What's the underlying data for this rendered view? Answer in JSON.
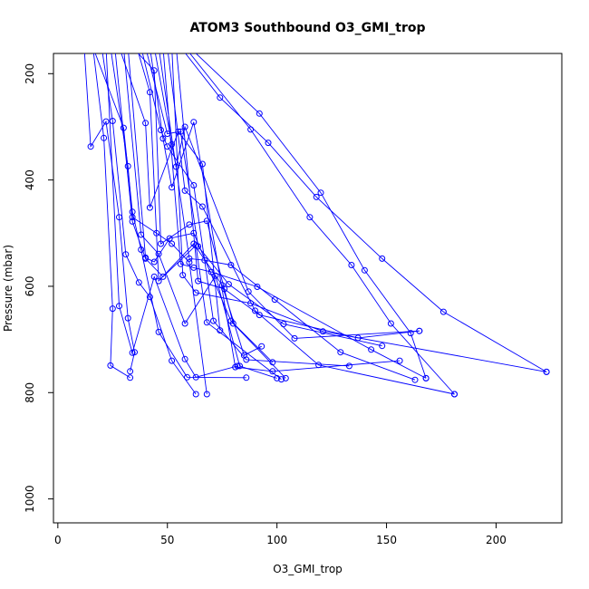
{
  "chart_data": {
    "type": "line",
    "title": "ATOM3 Southbound O3_GMI_trop",
    "xlabel": "O3_GMI_trop",
    "ylabel": "Pressure (mbar)",
    "xlim": [
      -2,
      230
    ],
    "ylim": [
      1045,
      162
    ],
    "y_reversed": true,
    "xticks": [
      0,
      50,
      100,
      150,
      200
    ],
    "yticks": [
      200,
      400,
      600,
      800,
      1000
    ],
    "grid": false,
    "color": "#0000ff",
    "marker": "open-circle",
    "series": [
      {
        "x": [
          12,
          15,
          22,
          28,
          32,
          35,
          33
        ],
        "y": [
          150,
          337,
          290,
          470,
          660,
          724,
          760
        ]
      },
      {
        "x": [
          16,
          21,
          25,
          24,
          33
        ],
        "y": [
          150,
          321,
          642,
          749,
          772
        ]
      },
      {
        "x": [
          16,
          30,
          34,
          38,
          46,
          59,
          86
        ],
        "y": [
          150,
          302,
          460,
          531,
          686,
          771,
          772
        ]
      },
      {
        "x": [
          20,
          25,
          31,
          37,
          42,
          52,
          63
        ],
        "y": [
          150,
          289,
          540,
          593,
          620,
          740,
          803
        ]
      },
      {
        "x": [
          22,
          28,
          34,
          44,
          58,
          63,
          82
        ],
        "y": [
          150,
          637,
          725,
          582,
          737,
          771,
          750
        ]
      },
      {
        "x": [
          24,
          32,
          34,
          45,
          52,
          60,
          68
        ],
        "y": [
          150,
          374,
          470,
          500,
          520,
          555,
          803
        ]
      },
      {
        "x": [
          26,
          34,
          40,
          48,
          63,
          68,
          102
        ],
        "y": [
          150,
          478,
          548,
          582,
          523,
          668,
          775
        ]
      },
      {
        "x": [
          28,
          40,
          42,
          55,
          66,
          74
        ],
        "y": [
          150,
          293,
          452,
          309,
          370,
          683
        ]
      },
      {
        "x": [
          30,
          38,
          46,
          58,
          72,
          83,
          100
        ],
        "y": [
          150,
          503,
          539,
          670,
          580,
          750,
          773
        ]
      },
      {
        "x": [
          32,
          40,
          44,
          51,
          62,
          79,
          98
        ],
        "y": [
          150,
          546,
          554,
          510,
          500,
          665,
          743
        ]
      },
      {
        "x": [
          34,
          44,
          47,
          60,
          68,
          80,
          104
        ],
        "y": [
          150,
          194,
          520,
          484,
          477,
          670,
          773
        ]
      },
      {
        "x": [
          36,
          42,
          46,
          62,
          75,
          85,
          93
        ],
        "y": [
          150,
          235,
          590,
          520,
          598,
          730,
          713
        ]
      },
      {
        "x": [
          38,
          47,
          50,
          62,
          71,
          86,
          133
        ],
        "y": [
          150,
          306,
          337,
          410,
          665,
          738,
          750
        ]
      },
      {
        "x": [
          40,
          50,
          56,
          64,
          78,
          103,
          148
        ],
        "y": [
          150,
          313,
          309,
          525,
          596,
          671,
          712
        ]
      },
      {
        "x": [
          42,
          48,
          52,
          62,
          81,
          98,
          156
        ],
        "y": [
          150,
          322,
          414,
          291,
          752,
          760,
          740
        ]
      },
      {
        "x": [
          44,
          52,
          54,
          58,
          87,
          108,
          165
        ],
        "y": [
          150,
          333,
          375,
          300,
          610,
          698,
          684
        ]
      },
      {
        "x": [
          46,
          60,
          67,
          79,
          99,
          129,
          163
        ],
        "y": [
          150,
          548,
          551,
          560,
          625,
          724,
          776
        ]
      },
      {
        "x": [
          48,
          56,
          62,
          70,
          91,
          143,
          168
        ],
        "y": [
          150,
          558,
          565,
          573,
          601,
          719,
          773
        ]
      },
      {
        "x": [
          50,
          58,
          66,
          90,
          119,
          181
        ],
        "y": [
          150,
          420,
          450,
          646,
          748,
          803
        ]
      },
      {
        "x": [
          52,
          57,
          63,
          88,
          121,
          223
        ],
        "y": [
          150,
          579,
          612,
          632,
          685,
          761
        ]
      },
      {
        "x": [
          54,
          64,
          76,
          92,
          137,
          165
        ],
        "y": [
          150,
          590,
          605,
          654,
          697,
          684
        ]
      },
      {
        "x": [
          56,
          74,
          96,
          118,
          148,
          176,
          223
        ],
        "y": [
          150,
          245,
          330,
          432,
          548,
          648,
          761
        ]
      },
      {
        "x": [
          58,
          88,
          115,
          134,
          152,
          181
        ],
        "y": [
          150,
          305,
          470,
          560,
          670,
          803
        ]
      },
      {
        "x": [
          60,
          92,
          120,
          140,
          161,
          168
        ],
        "y": [
          150,
          275,
          424,
          570,
          688,
          773
        ]
      }
    ]
  }
}
